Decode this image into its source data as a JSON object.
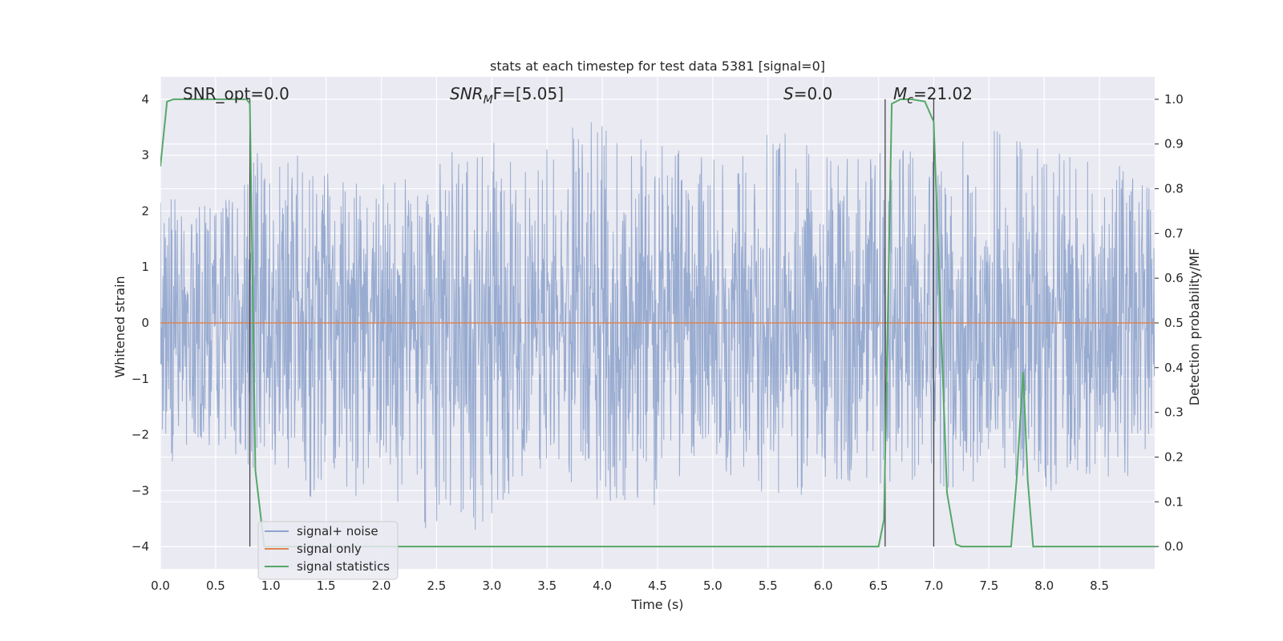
{
  "chart_data": {
    "type": "line",
    "title": "stats at each timestep for test data 5381 [signal=0]",
    "xlabel": "Time (s)",
    "ylabel": "Whitened strain",
    "y2label": "Detection probability/MF",
    "xlim": [
      0.0,
      9.0
    ],
    "ylim": [
      -4.4,
      4.4
    ],
    "y2lim": [
      -0.05,
      1.05
    ],
    "xticks": [
      "0.0",
      "0.5",
      "1.0",
      "1.5",
      "2.0",
      "2.5",
      "3.0",
      "3.5",
      "4.0",
      "4.5",
      "5.0",
      "5.5",
      "6.0",
      "6.5",
      "7.0",
      "7.5",
      "8.0",
      "8.5"
    ],
    "yticks": [
      "4",
      "3",
      "2",
      "1",
      "0",
      "−1",
      "−2",
      "−3",
      "−4"
    ],
    "y2ticks": [
      "1.0",
      "0.9",
      "0.8",
      "0.7",
      "0.6",
      "0.5",
      "0.4",
      "0.3",
      "0.2",
      "0.1",
      "0.0"
    ],
    "grid": true,
    "legend_position": "lower-left",
    "annotations": {
      "snr_opt": "SNR_opt=0.0",
      "snr_mf_main": "SNR",
      "snr_mf_sub": "M",
      "snr_mf_rest": "F=[5.05]",
      "s_main": "S",
      "s_rest": "=0.0",
      "mc_main": "M",
      "mc_sub": "c",
      "mc_rest": "=21.02"
    },
    "vlines_x": [
      0.81,
      6.56,
      7.0
    ],
    "noise_envelope": {
      "x": [
        0.0,
        0.3,
        0.6,
        0.8,
        1.0,
        1.3,
        1.6,
        2.0,
        2.4,
        2.8,
        3.2,
        3.6,
        4.0,
        4.4,
        4.8,
        5.2,
        5.6,
        6.0,
        6.4,
        6.8,
        7.2,
        7.6,
        8.0,
        8.4,
        8.7,
        9.0
      ],
      "upper": [
        2.2,
        2.4,
        2.5,
        3.3,
        2.7,
        3.2,
        2.6,
        2.8,
        2.5,
        3.6,
        3.0,
        3.6,
        3.6,
        3.3,
        3.0,
        2.9,
        3.7,
        3.0,
        3.0,
        3.3,
        3.3,
        4.0,
        3.1,
        3.1,
        2.8,
        2.5
      ],
      "lower": [
        -2.6,
        -2.3,
        -2.4,
        -3.1,
        -2.5,
        -3.1,
        -3.4,
        -2.8,
        -3.9,
        -3.9,
        -3.0,
        -2.9,
        -3.2,
        -3.4,
        -2.6,
        -2.8,
        -3.3,
        -2.9,
        -2.8,
        -3.1,
        -3.0,
        -2.6,
        -3.2,
        -2.8,
        -2.9,
        -2.4
      ]
    },
    "series": [
      {
        "name": "signal+ noise",
        "color": "#8fa4cc",
        "axis": "left"
      },
      {
        "name": "signal only",
        "color": "#dd8452",
        "axis": "left",
        "x": [
          0.0,
          9.0
        ],
        "y": [
          0.0,
          0.0
        ]
      },
      {
        "name": "signal statistics",
        "color": "#55a868",
        "axis": "right",
        "x": [
          0.0,
          0.06,
          0.12,
          0.2,
          0.4,
          0.6,
          0.78,
          0.81,
          0.86,
          0.94,
          1.0,
          1.2,
          2.0,
          3.0,
          4.0,
          5.0,
          6.0,
          6.5,
          6.55,
          6.62,
          6.7,
          6.8,
          6.92,
          7.0,
          7.05,
          7.12,
          7.2,
          7.25,
          7.5,
          7.7,
          7.75,
          7.81,
          7.85,
          7.9,
          8.2,
          8.5,
          9.0
        ],
        "y": [
          0.85,
          0.995,
          1.0,
          1.0,
          1.0,
          1.0,
          1.0,
          0.99,
          0.17,
          0.0,
          0.0,
          0.0,
          0.0,
          0.0,
          0.0,
          0.0,
          0.0,
          0.0,
          0.06,
          0.99,
          1.0,
          1.0,
          0.995,
          0.95,
          0.6,
          0.12,
          0.005,
          0.0,
          0.0,
          0.0,
          0.15,
          0.39,
          0.15,
          0.0,
          0.0,
          0.0,
          0.0
        ]
      }
    ]
  }
}
